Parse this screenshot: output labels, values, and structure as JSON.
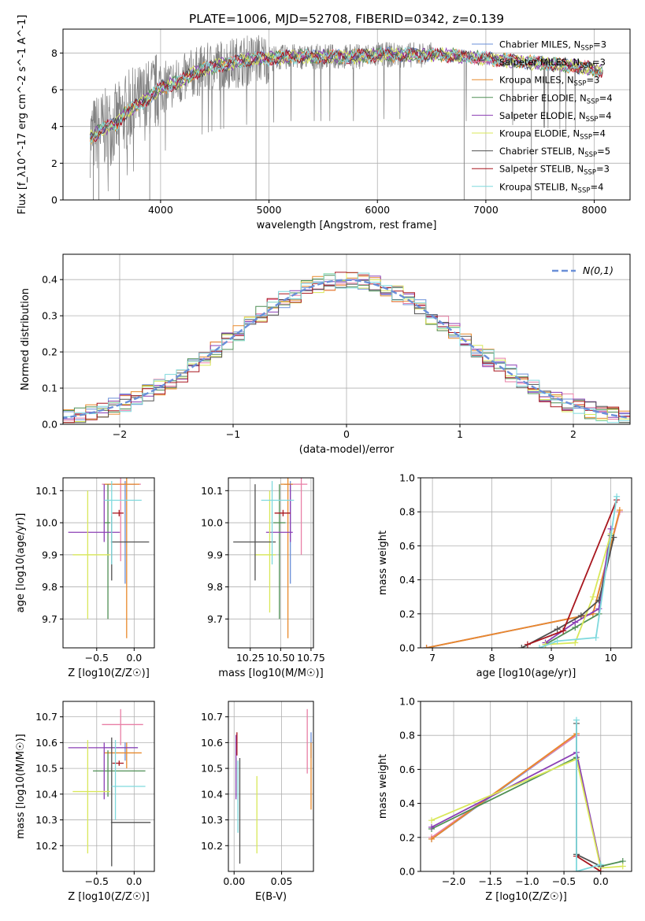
{
  "title": "PLATE=1006, MJD=52708, FIBERID=0342, z=0.139",
  "palette": {
    "Chabrier MILES": "#6a8fd8",
    "Salpeter MILES": "#e87fa6",
    "Kroupa MILES": "#e8892b",
    "Chabrier ELODIE": "#4f8f55",
    "Salpeter ELODIE": "#8b3fb5",
    "Kroupa ELODIE": "#d9e85a",
    "Chabrier STELIB": "#505050",
    "Salpeter STELIB": "#a8161e",
    "Kroupa STELIB": "#7fd9dd",
    "data": "#808080"
  },
  "chart_data": [
    {
      "type": "line",
      "id": "spectrum",
      "xlabel": "wavelength [Angstrom, rest frame]",
      "ylabel": "Flux [f_λ10^-17 erg cm^-2 s^-1 A^-1]",
      "xlim": [
        3100,
        8330
      ],
      "ylim": [
        0,
        9.3
      ],
      "xticks": [
        4000,
        5000,
        6000,
        7000,
        8000
      ],
      "yticks": [
        0,
        2,
        4,
        6,
        8
      ],
      "legend_position": "right",
      "legend": [
        {
          "name": "Chabrier MILES",
          "n_ssp": 3
        },
        {
          "name": "Salpeter MILES",
          "n_ssp": 3
        },
        {
          "name": "Kroupa MILES",
          "n_ssp": 3
        },
        {
          "name": "Chabrier ELODIE",
          "n_ssp": 4
        },
        {
          "name": "Salpeter ELODIE",
          "n_ssp": 4
        },
        {
          "name": "Kroupa ELODIE",
          "n_ssp": 4
        },
        {
          "name": "Chabrier STELIB",
          "n_ssp": 5
        },
        {
          "name": "Salpeter STELIB",
          "n_ssp": 3
        },
        {
          "name": "Kroupa STELIB",
          "n_ssp": 4
        }
      ],
      "model_continuum": {
        "x": [
          3350,
          3450,
          3600,
          3700,
          3800,
          3900,
          4000,
          4100,
          4200,
          4300,
          4400,
          4500,
          4700,
          4900,
          5000,
          5200,
          5400,
          5600,
          5800,
          6000,
          6200,
          6400,
          6600,
          6800,
          7000,
          7200,
          7400,
          7600,
          7800,
          8000,
          8100
        ],
        "y": [
          3.4,
          3.8,
          4.2,
          4.9,
          5.2,
          5.6,
          6.1,
          6.3,
          6.5,
          6.9,
          7.1,
          7.3,
          7.5,
          7.7,
          7.7,
          7.8,
          7.8,
          7.8,
          7.8,
          7.9,
          7.9,
          7.9,
          7.9,
          7.8,
          7.7,
          7.6,
          7.5,
          7.4,
          7.3,
          7.1,
          7.0
        ]
      }
    },
    {
      "type": "bar",
      "id": "residuals",
      "xlabel": "(data-model)/error",
      "ylabel": "Normed distribution",
      "xlim": [
        -2.5,
        2.5
      ],
      "ylim": [
        0,
        0.47
      ],
      "xticks": [
        -2,
        -1,
        0,
        1,
        2
      ],
      "yticks": [
        0.0,
        0.1,
        0.2,
        0.3,
        0.4
      ],
      "legend_position": "top-right",
      "gaussian_label": "N(0,1)",
      "bin_width": 0.1
    },
    {
      "type": "scatter",
      "id": "age-vs-Z",
      "xlabel": "Z [log10(Z/Z☉)]",
      "ylabel": "age  [log10(age/yr)]",
      "xlim": [
        -0.95,
        0.27
      ],
      "ylim": [
        9.61,
        10.14
      ],
      "xticks": [
        -0.5,
        0.0
      ],
      "yticks": [
        9.7,
        9.8,
        9.9,
        10.0,
        10.1
      ],
      "points": [
        {
          "model": "Chabrier MILES",
          "x": -0.12,
          "xerr": [
            0.28,
            0.14
          ],
          "y": 10.12,
          "yerr": [
            0.31,
            0.01
          ]
        },
        {
          "model": "Salpeter MILES",
          "x": -0.18,
          "xerr": [
            0.25,
            0.27
          ],
          "y": 10.12,
          "yerr": [
            0.24,
            0.02
          ]
        },
        {
          "model": "Kroupa MILES",
          "x": -0.1,
          "xerr": [
            0.3,
            0.17
          ],
          "y": 10.12,
          "yerr": [
            0.48,
            0.02
          ]
        },
        {
          "model": "Chabrier ELODIE",
          "x": -0.35,
          "xerr": [
            0.05,
            0.03
          ],
          "y": 10.0,
          "yerr": [
            0.3,
            0.12
          ]
        },
        {
          "model": "Salpeter ELODIE",
          "x": -0.4,
          "xerr": [
            0.48,
            0.21
          ],
          "y": 9.97,
          "yerr": [
            0.03,
            0.15
          ]
        },
        {
          "model": "Kroupa ELODIE",
          "x": -0.62,
          "xerr": [
            0.2,
            0.3
          ],
          "y": 9.9,
          "yerr": [
            0.2,
            0.2
          ]
        },
        {
          "model": "Chabrier STELIB",
          "x": -0.3,
          "xerr": [
            0.01,
            0.5
          ],
          "y": 9.94,
          "yerr": [
            0.12,
            0.08
          ]
        },
        {
          "model": "Salpeter STELIB",
          "x": -0.2,
          "xerr": [
            0.09,
            0.06
          ],
          "y": 10.03,
          "yerr": [
            0.01,
            0.01
          ]
        },
        {
          "model": "Kroupa STELIB",
          "x": -0.3,
          "xerr": [
            0.1,
            0.4
          ],
          "y": 10.07,
          "yerr": [
            0.2,
            0.06
          ]
        }
      ]
    },
    {
      "type": "scatter",
      "id": "age-vs-mass",
      "xlabel": "mass [log10(M/M☉)]",
      "ylabel": "",
      "xlim": [
        10.07,
        10.77
      ],
      "ylim": [
        9.61,
        10.14
      ],
      "xticks": [
        10.25,
        10.5,
        10.75
      ],
      "yticks": [
        9.7,
        9.8,
        9.9,
        10.0,
        10.1
      ],
      "points": [
        {
          "model": "Chabrier MILES",
          "x": 10.58,
          "xerr": [
            0.05,
            0.02
          ],
          "y": 10.12,
          "yerr": [
            0.31,
            0.01
          ]
        },
        {
          "model": "Salpeter MILES",
          "x": 10.67,
          "xerr": [
            0.08,
            0.05
          ],
          "y": 10.12,
          "yerr": [
            0.22,
            0.02
          ]
        },
        {
          "model": "Kroupa MILES",
          "x": 10.56,
          "xerr": [
            0.06,
            0.04
          ],
          "y": 10.12,
          "yerr": [
            0.48,
            0.02
          ]
        },
        {
          "model": "Chabrier ELODIE",
          "x": 10.49,
          "xerr": [
            0.05,
            0.05
          ],
          "y": 10.0,
          "yerr": [
            0.3,
            0.12
          ]
        },
        {
          "model": "Salpeter ELODIE",
          "x": 10.58,
          "xerr": [
            0.2,
            0.02
          ],
          "y": 9.97,
          "yerr": [
            0.03,
            0.15
          ]
        },
        {
          "model": "Kroupa ELODIE",
          "x": 10.41,
          "xerr": [
            0.12,
            0.05
          ],
          "y": 9.9,
          "yerr": [
            0.18,
            0.2
          ]
        },
        {
          "model": "Chabrier STELIB",
          "x": 10.29,
          "xerr": [
            0.18,
            0.17
          ],
          "y": 9.94,
          "yerr": [
            0.12,
            0.18
          ]
        },
        {
          "model": "Salpeter STELIB",
          "x": 10.52,
          "xerr": [
            0.07,
            0.06
          ],
          "y": 10.03,
          "yerr": [
            0.01,
            0.01
          ]
        },
        {
          "model": "Kroupa STELIB",
          "x": 10.43,
          "xerr": [
            0.09,
            0.18
          ],
          "y": 10.07,
          "yerr": [
            0.2,
            0.06
          ]
        }
      ]
    },
    {
      "type": "line",
      "id": "mass-weight-vs-age",
      "xlabel": "age  [log10(age/yr)]",
      "ylabel": "mass weight",
      "xlim": [
        6.8,
        10.35
      ],
      "ylim": [
        0,
        1.0
      ],
      "xticks": [
        7,
        8,
        9,
        10
      ],
      "yticks": [
        0.0,
        0.2,
        0.4,
        0.6,
        0.8,
        1.0
      ],
      "series": [
        {
          "model": "Chabrier MILES",
          "x": [
            6.9,
            9.7,
            10.15
          ],
          "y": [
            0.0,
            0.2,
            0.8
          ]
        },
        {
          "model": "Salpeter MILES",
          "x": [
            6.9,
            9.7,
            10.15
          ],
          "y": [
            0.0,
            0.2,
            0.8
          ]
        },
        {
          "model": "Kroupa MILES",
          "x": [
            6.9,
            9.7,
            10.15
          ],
          "y": [
            0.0,
            0.2,
            0.81
          ]
        },
        {
          "model": "Chabrier ELODIE",
          "x": [
            8.9,
            9.4,
            9.8,
            10.0
          ],
          "y": [
            0.02,
            0.12,
            0.2,
            0.66
          ]
        },
        {
          "model": "Salpeter ELODIE",
          "x": [
            8.9,
            9.4,
            9.8,
            10.0
          ],
          "y": [
            0.03,
            0.15,
            0.23,
            0.7
          ]
        },
        {
          "model": "Kroupa ELODIE",
          "x": [
            8.9,
            9.4,
            9.7,
            10.0
          ],
          "y": [
            0.02,
            0.03,
            0.3,
            0.67
          ]
        },
        {
          "model": "Chabrier STELIB",
          "x": [
            8.5,
            9.1,
            9.5,
            9.8,
            10.05
          ],
          "y": [
            0.0,
            0.11,
            0.19,
            0.28,
            0.65
          ]
        },
        {
          "model": "Salpeter STELIB",
          "x": [
            8.6,
            9.2,
            10.1
          ],
          "y": [
            0.02,
            0.1,
            0.87
          ]
        },
        {
          "model": "Kroupa STELIB",
          "x": [
            8.8,
            9.1,
            9.75,
            10.1
          ],
          "y": [
            0.0,
            0.04,
            0.06,
            0.89
          ]
        }
      ]
    },
    {
      "type": "scatter",
      "id": "mass-vs-Z",
      "xlabel": "Z [log10(Z/Z☉)]",
      "ylabel": "mass [log10(M/M☉)]",
      "xlim": [
        -0.95,
        0.27
      ],
      "ylim": [
        10.1,
        10.76
      ],
      "xticks": [
        -0.5,
        0.0
      ],
      "yticks": [
        10.2,
        10.3,
        10.4,
        10.5,
        10.6,
        10.7
      ],
      "points": [
        {
          "model": "Chabrier MILES",
          "x": -0.12,
          "xerr": [
            0.28,
            0.17
          ],
          "y": 10.58,
          "yerr": [
            0.05,
            0.02
          ]
        },
        {
          "model": "Salpeter MILES",
          "x": -0.18,
          "xerr": [
            0.25,
            0.3
          ],
          "y": 10.67,
          "yerr": [
            0.08,
            0.06
          ]
        },
        {
          "model": "Kroupa MILES",
          "x": -0.1,
          "xerr": [
            0.3,
            0.2
          ],
          "y": 10.56,
          "yerr": [
            0.06,
            0.04
          ]
        },
        {
          "model": "Chabrier ELODIE",
          "x": -0.35,
          "xerr": [
            0.2,
            0.5
          ],
          "y": 10.49,
          "yerr": [
            0.1,
            0.08
          ]
        },
        {
          "model": "Salpeter ELODIE",
          "x": -0.4,
          "xerr": [
            0.48,
            0.45
          ],
          "y": 10.58,
          "yerr": [
            0.2,
            0.02
          ]
        },
        {
          "model": "Kroupa ELODIE",
          "x": -0.62,
          "xerr": [
            0.2,
            0.3
          ],
          "y": 10.41,
          "yerr": [
            0.24,
            0.2
          ]
        },
        {
          "model": "Chabrier STELIB",
          "x": -0.3,
          "xerr": [
            0.01,
            0.52
          ],
          "y": 10.29,
          "yerr": [
            0.17,
            0.33
          ]
        },
        {
          "model": "Salpeter STELIB",
          "x": -0.2,
          "xerr": [
            0.09,
            0.06
          ],
          "y": 10.52,
          "yerr": [
            0.01,
            0.01
          ]
        },
        {
          "model": "Kroupa STELIB",
          "x": -0.25,
          "xerr": [
            0.05,
            0.4
          ],
          "y": 10.43,
          "yerr": [
            0.13,
            0.18
          ]
        }
      ]
    },
    {
      "type": "scatter",
      "id": "mass-vs-ebv",
      "xlabel": "E(B-V)",
      "ylabel": "",
      "xlim": [
        -0.006,
        0.0835
      ],
      "ylim": [
        10.1,
        10.76
      ],
      "xticks": [
        0.0,
        0.05
      ],
      "yticks": [
        10.2,
        10.3,
        10.4,
        10.5,
        10.6,
        10.7
      ],
      "points": [
        {
          "model": "Chabrier MILES",
          "x": 0.081,
          "y": 10.58,
          "yerr": [
            0.04,
            0.06
          ]
        },
        {
          "model": "Salpeter MILES",
          "x": 0.077,
          "y": 10.67,
          "yerr": [
            0.19,
            0.06
          ]
        },
        {
          "model": "Kroupa MILES",
          "x": 0.081,
          "y": 10.56,
          "yerr": [
            0.22,
            0.04
          ]
        },
        {
          "model": "Chabrier ELODIE",
          "x": 0.002,
          "y": 10.49,
          "yerr": [
            0.1,
            0.05
          ]
        },
        {
          "model": "Salpeter ELODIE",
          "x": 0.002,
          "y": 10.58,
          "yerr": [
            0.2,
            0.05
          ]
        },
        {
          "model": "Kroupa ELODIE",
          "x": 0.024,
          "y": 10.41,
          "yerr": [
            0.24,
            0.06
          ]
        },
        {
          "model": "Chabrier STELIB",
          "x": 0.006,
          "y": 10.33,
          "yerr": [
            0.2,
            0.21
          ]
        },
        {
          "model": "Salpeter STELIB",
          "x": 0.003,
          "y": 10.6,
          "yerr": [
            0.05,
            0.04
          ]
        },
        {
          "model": "Kroupa STELIB",
          "x": 0.004,
          "y": 10.4,
          "yerr": [
            0.15,
            0.13
          ]
        }
      ]
    },
    {
      "type": "line",
      "id": "mass-weight-vs-Z",
      "xlabel": "Z [log10(Z/Z☉)]",
      "ylabel": "mass weight",
      "xlim": [
        -2.45,
        0.42
      ],
      "ylim": [
        0,
        1.0
      ],
      "xticks": [
        -2.0,
        -1.5,
        -1.0,
        -0.5,
        0.0
      ],
      "yticks": [
        0.0,
        0.2,
        0.4,
        0.6,
        0.8,
        1.0
      ],
      "series": [
        {
          "model": "Chabrier MILES",
          "x": [
            -2.3,
            -0.33,
            -0.33
          ],
          "y": [
            0.19,
            0.8,
            0.8
          ]
        },
        {
          "model": "Salpeter MILES",
          "x": [
            -2.3,
            -0.33
          ],
          "y": [
            0.2,
            0.8
          ]
        },
        {
          "model": "Kroupa MILES",
          "x": [
            -2.3,
            -0.33
          ],
          "y": [
            0.19,
            0.81
          ]
        },
        {
          "model": "Chabrier ELODIE",
          "x": [
            -2.3,
            -0.33,
            0.0,
            0.3
          ],
          "y": [
            0.25,
            0.67,
            0.03,
            0.06
          ]
        },
        {
          "model": "Salpeter ELODIE",
          "x": [
            -2.3,
            -0.33,
            0.0
          ],
          "y": [
            0.26,
            0.7,
            0.03
          ]
        },
        {
          "model": "Kroupa ELODIE",
          "x": [
            -2.3,
            -0.33,
            0.0,
            0.3
          ],
          "y": [
            0.3,
            0.66,
            0.02,
            0.03
          ]
        },
        {
          "model": "Chabrier STELIB",
          "x": [
            -0.33,
            -0.33,
            0.0
          ],
          "y": [
            0.87,
            0.1,
            0.03
          ]
        },
        {
          "model": "Salpeter STELIB",
          "x": [
            -0.33,
            0.0
          ],
          "y": [
            0.09,
            0.0
          ]
        },
        {
          "model": "Kroupa STELIB",
          "x": [
            -0.33,
            -0.33,
            0.0
          ],
          "y": [
            0.89,
            0.0,
            0.04
          ]
        }
      ]
    }
  ]
}
